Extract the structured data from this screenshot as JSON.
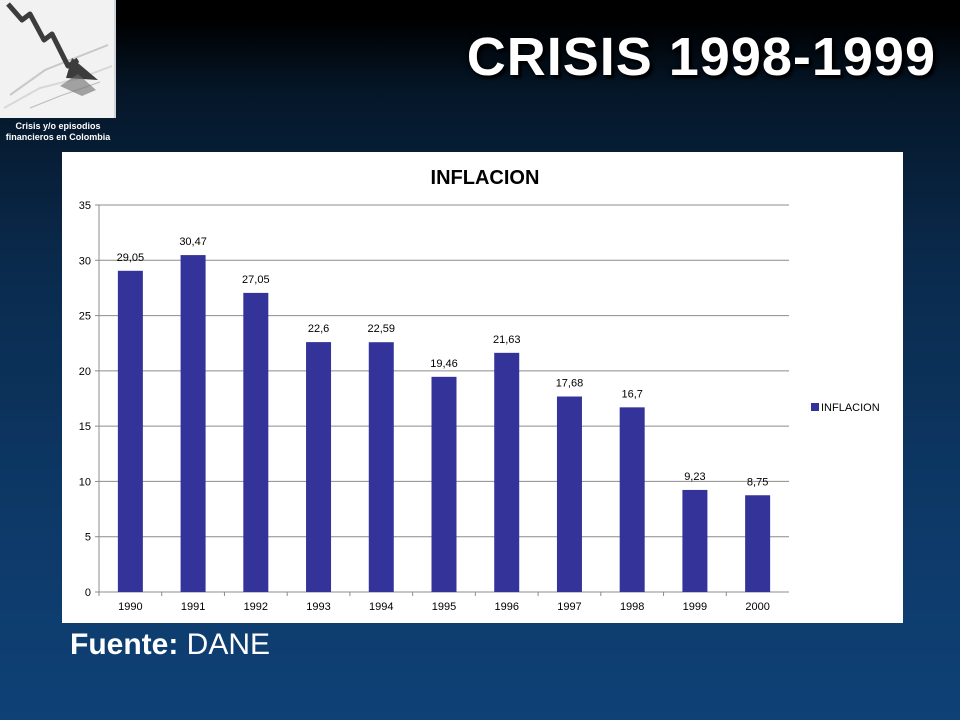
{
  "header": {
    "title": "CRISIS 1998-1999",
    "logo_caption_line1": "Crisis y/o episodios",
    "logo_caption_line2": "financieros en Colombia"
  },
  "footer": {
    "source_label": "Fuente:",
    "source_value": "DANE"
  },
  "colors": {
    "bar": "#333399",
    "background": "#0d3968",
    "title_text": "#ffffff"
  },
  "chart_data": {
    "type": "bar",
    "title": "INFLACION",
    "xlabel": "",
    "ylabel": "",
    "categories": [
      "1990",
      "1991",
      "1992",
      "1993",
      "1994",
      "1995",
      "1996",
      "1997",
      "1998",
      "1999",
      "2000"
    ],
    "series": [
      {
        "name": "INFLACION",
        "values": [
          29.05,
          30.47,
          27.05,
          22.6,
          22.59,
          19.46,
          21.63,
          17.68,
          16.7,
          9.23,
          8.75
        ],
        "labels": [
          "29,05",
          "30,47",
          "27,05",
          "22,6",
          "22,59",
          "19,46",
          "21,63",
          "17,68",
          "16,7",
          "9,23",
          "8,75"
        ],
        "color": "#333399"
      }
    ],
    "ylim": [
      0,
      35
    ],
    "yticks": [
      0,
      5,
      10,
      15,
      20,
      25,
      30,
      35
    ],
    "grid": true,
    "legend": "right"
  }
}
